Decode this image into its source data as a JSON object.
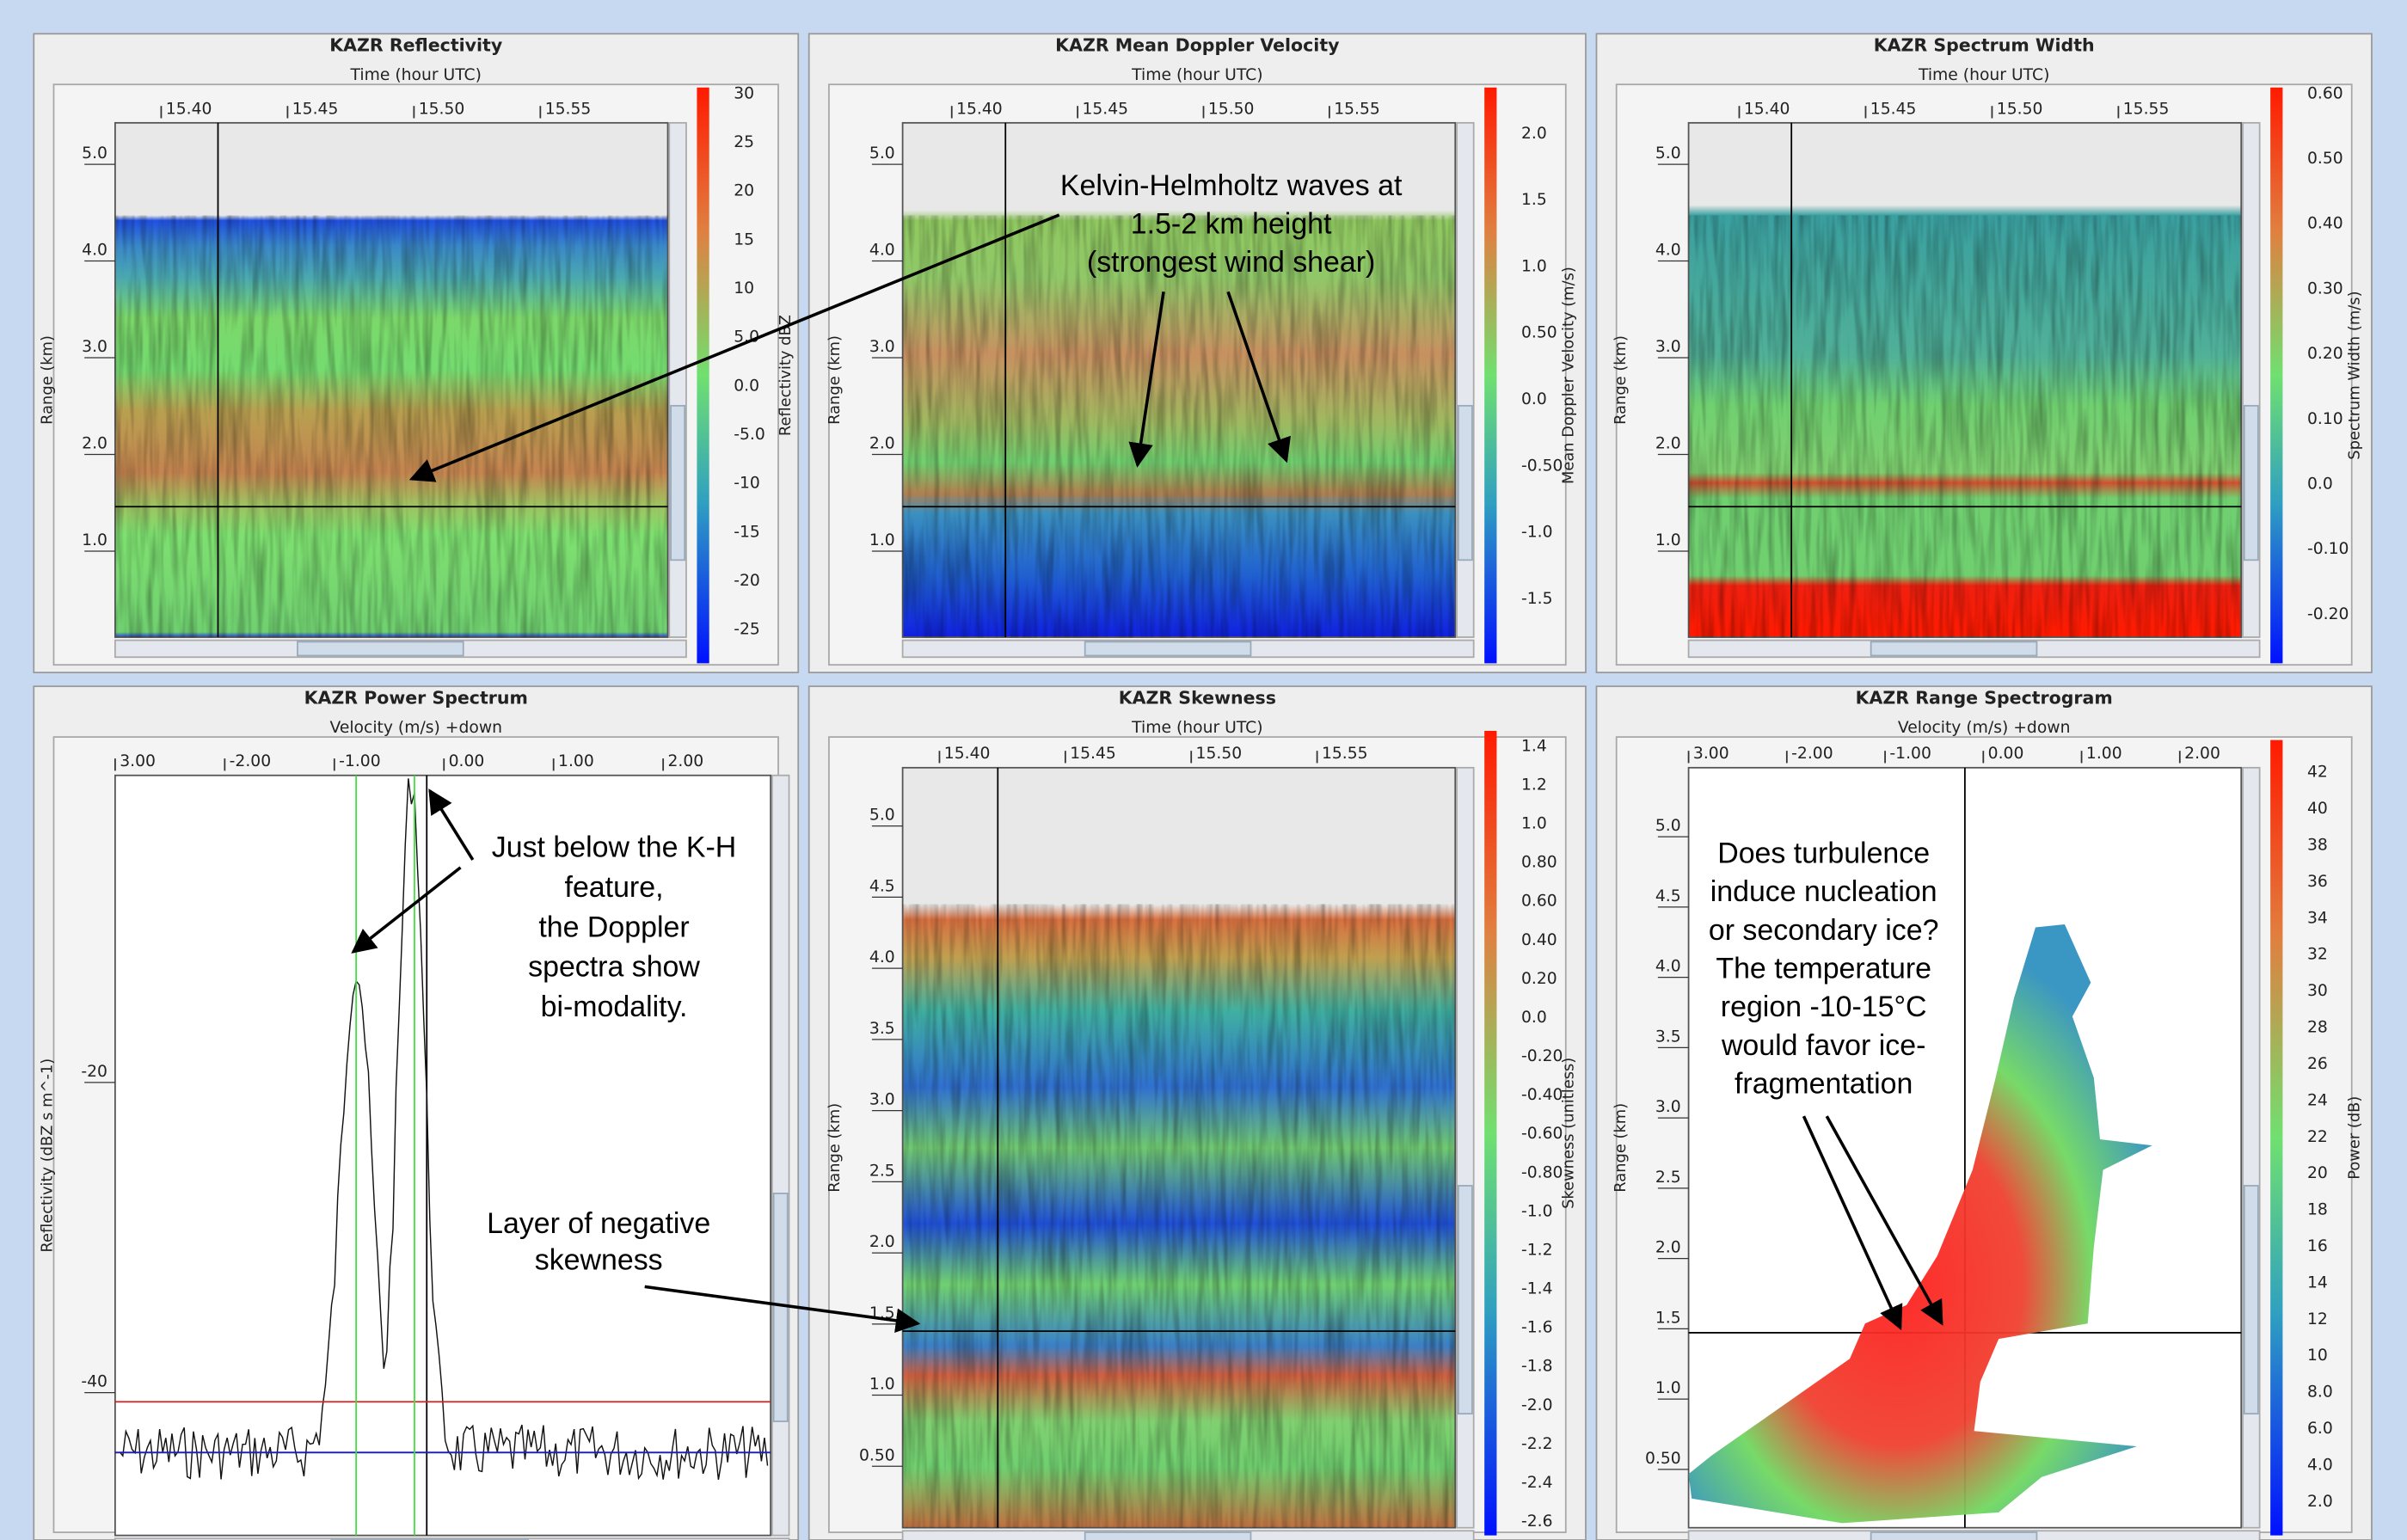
{
  "panels": [
    {
      "title": "KAZR Reflectivity",
      "x_axis_label": "Time (hour UTC)",
      "x_ticks": [
        "15.40",
        "15.45",
        "15.50",
        "15.55"
      ],
      "y_axis_label": "Range (km)",
      "y_ticks": [
        "5.0",
        "4.0",
        "3.0",
        "2.0",
        "1.0"
      ],
      "colorbar_label": "Reflectivity dBZ",
      "colorbar_ticks": [
        "30",
        "25",
        "20",
        "15",
        "10",
        "5.0",
        "0.0",
        "-5.0",
        "-10",
        "-15",
        "-20",
        "-25"
      ]
    },
    {
      "title": "KAZR Mean Doppler Velocity",
      "x_axis_label": "Time (hour UTC)",
      "x_ticks": [
        "15.40",
        "15.45",
        "15.50",
        "15.55"
      ],
      "y_axis_label": "Range (km)",
      "y_ticks": [
        "5.0",
        "4.0",
        "3.0",
        "2.0",
        "1.0"
      ],
      "colorbar_label": "Mean Doppler Velocity (m/s)",
      "colorbar_ticks": [
        "2.0",
        "1.5",
        "1.0",
        "0.50",
        "0.0",
        "-0.50",
        "-1.0",
        "-1.5"
      ]
    },
    {
      "title": "KAZR Spectrum Width",
      "x_axis_label": "Time (hour UTC)",
      "x_ticks": [
        "15.40",
        "15.45",
        "15.50",
        "15.55"
      ],
      "y_axis_label": "Range (km)",
      "y_ticks": [
        "5.0",
        "4.0",
        "3.0",
        "2.0",
        "1.0"
      ],
      "colorbar_label": "Spectrum Width (m/s)",
      "colorbar_ticks": [
        "0.60",
        "0.50",
        "0.40",
        "0.30",
        "0.20",
        "0.10",
        "0.0",
        "-0.10",
        "-0.20"
      ]
    },
    {
      "title": "KAZR Power Spectrum",
      "x_axis_label": "Velocity (m/s) +down",
      "x_ticks": [
        "3.00",
        "-2.00",
        "-1.00",
        "0.00",
        "1.00",
        "2.00"
      ],
      "y_axis_label": "Reflectivity (dBZ s m^-1)",
      "y_ticks": [
        "-20",
        "-40"
      ]
    },
    {
      "title": "KAZR Skewness",
      "x_axis_label": "Time (hour UTC)",
      "x_ticks": [
        "15.40",
        "15.45",
        "15.50",
        "15.55"
      ],
      "y_axis_label": "Range (km)",
      "y_ticks": [
        "5.0",
        "4.5",
        "4.0",
        "3.5",
        "3.0",
        "2.5",
        "2.0",
        "1.5",
        "1.0",
        "0.50"
      ],
      "colorbar_label": "Skewness (unitless)",
      "colorbar_ticks": [
        "1.4",
        "1.2",
        "1.0",
        "0.80",
        "0.60",
        "0.40",
        "0.20",
        "0.0",
        "-0.20",
        "-0.40",
        "-0.60",
        "-0.80",
        "-1.0",
        "-1.2",
        "-1.4",
        "-1.6",
        "-1.8",
        "-2.0",
        "-2.2",
        "-2.4",
        "-2.6"
      ]
    },
    {
      "title": "KAZR Range Spectrogram",
      "x_axis_label": "Velocity (m/s) +down",
      "x_ticks": [
        "3.00",
        "-2.00",
        "-1.00",
        "0.00",
        "1.00",
        "2.00"
      ],
      "y_axis_label": "Range (km)",
      "y_ticks": [
        "5.0",
        "4.5",
        "4.0",
        "3.5",
        "3.0",
        "2.5",
        "2.0",
        "1.5",
        "1.0",
        "0.50"
      ],
      "colorbar_label": "Power (dB)",
      "colorbar_ticks": [
        "42",
        "40",
        "38",
        "36",
        "34",
        "32",
        "30",
        "28",
        "26",
        "24",
        "22",
        "20",
        "18",
        "16",
        "14",
        "12",
        "10",
        "8.0",
        "6.0",
        "4.0",
        "2.0"
      ]
    }
  ],
  "annotations": [
    {
      "lines": [
        "Kelvin-Helmholtz waves at",
        "1.5-2 km height",
        "(strongest wind shear)"
      ]
    },
    {
      "lines": [
        "Just below the K-H",
        "feature,",
        "the Doppler",
        "spectra show",
        "bi-modality."
      ]
    },
    {
      "lines": [
        "Layer of negative",
        "skewness"
      ]
    },
    {
      "lines": [
        "Does turbulence",
        "induce nucleation",
        "or secondary ice?",
        "The temperature",
        "region -10-15°C",
        "would favor ice-",
        "fragmentation"
      ]
    }
  ]
}
